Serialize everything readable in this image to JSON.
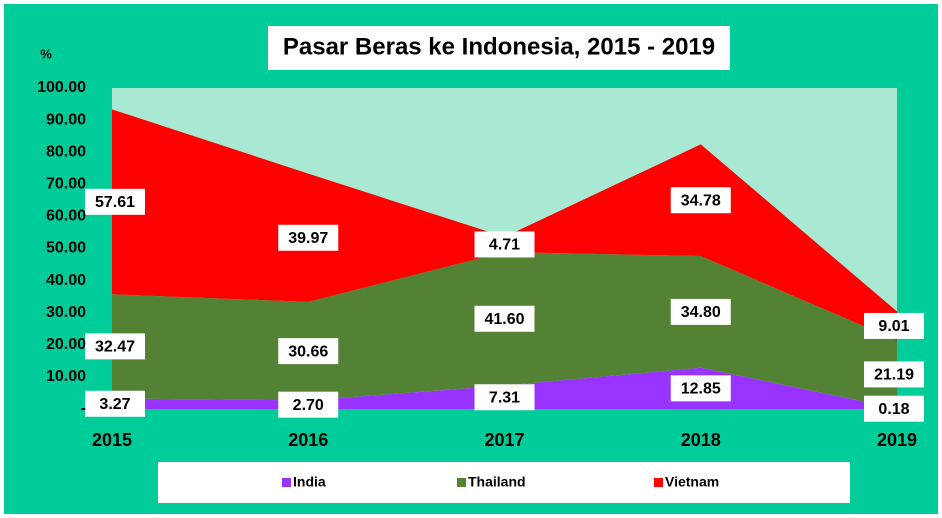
{
  "chart_data": {
    "type": "stacked_area",
    "title": "Pasar Beras ke Indonesia, 2015 - 2019",
    "ylabel": "%",
    "categories": [
      "2015",
      "2016",
      "2017",
      "2018",
      "2019"
    ],
    "series": [
      {
        "name": "India",
        "color": "#9933ff",
        "values": [
          3.27,
          2.7,
          7.31,
          12.85,
          0.18
        ],
        "value_labels": [
          "3.27",
          "2.70",
          "7.31",
          "12.85",
          "0.18"
        ]
      },
      {
        "name": "Thailand",
        "color": "#548235",
        "values": [
          32.47,
          30.66,
          41.6,
          34.8,
          21.19
        ],
        "value_labels": [
          "32.47",
          "30.66",
          "41.60",
          "34.80",
          "21.19"
        ]
      },
      {
        "name": "Vietnam",
        "color": "#ff0000",
        "values": [
          57.61,
          39.97,
          4.71,
          34.78,
          9.01
        ],
        "value_labels": [
          "57.61",
          "39.97",
          "4.71",
          "34.78",
          "9.01"
        ]
      }
    ],
    "ylim": [
      0,
      100
    ],
    "yticks": [
      {
        "value": 0,
        "label": "-"
      },
      {
        "value": 10,
        "label": "10.00"
      },
      {
        "value": 20,
        "label": "20.00"
      },
      {
        "value": 30,
        "label": "30.00"
      },
      {
        "value": 40,
        "label": "40.00"
      },
      {
        "value": 50,
        "label": "50.00"
      },
      {
        "value": 60,
        "label": "60.00"
      },
      {
        "value": 70,
        "label": "70.00"
      },
      {
        "value": 80,
        "label": "80.00"
      },
      {
        "value": 90,
        "label": "90.00"
      },
      {
        "value": 100,
        "label": "100.00"
      }
    ],
    "legend": "bottom"
  }
}
